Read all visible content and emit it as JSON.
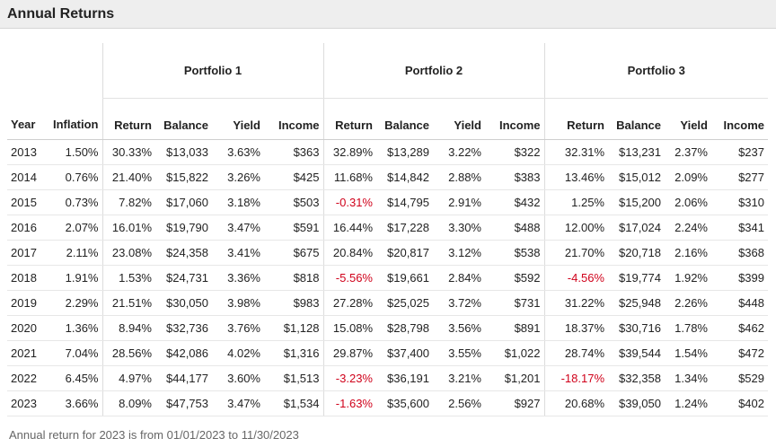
{
  "title": "Annual Returns",
  "groups": [
    "Portfolio 1",
    "Portfolio 2",
    "Portfolio 3"
  ],
  "columns": {
    "year": "Year",
    "inflation": "Inflation",
    "return": "Return",
    "balance": "Balance",
    "yield": "Yield",
    "income": "Income"
  },
  "rows": [
    {
      "year": "2013",
      "inflation": "1.50%",
      "p": [
        [
          "30.33%",
          "$13,033",
          "3.63%",
          "$363"
        ],
        [
          "32.89%",
          "$13,289",
          "3.22%",
          "$322"
        ],
        [
          "32.31%",
          "$13,231",
          "2.37%",
          "$237"
        ]
      ]
    },
    {
      "year": "2014",
      "inflation": "0.76%",
      "p": [
        [
          "21.40%",
          "$15,822",
          "3.26%",
          "$425"
        ],
        [
          "11.68%",
          "$14,842",
          "2.88%",
          "$383"
        ],
        [
          "13.46%",
          "$15,012",
          "2.09%",
          "$277"
        ]
      ]
    },
    {
      "year": "2015",
      "inflation": "0.73%",
      "p": [
        [
          "7.82%",
          "$17,060",
          "3.18%",
          "$503"
        ],
        [
          "-0.31%",
          "$14,795",
          "2.91%",
          "$432"
        ],
        [
          "1.25%",
          "$15,200",
          "2.06%",
          "$310"
        ]
      ]
    },
    {
      "year": "2016",
      "inflation": "2.07%",
      "p": [
        [
          "16.01%",
          "$19,790",
          "3.47%",
          "$591"
        ],
        [
          "16.44%",
          "$17,228",
          "3.30%",
          "$488"
        ],
        [
          "12.00%",
          "$17,024",
          "2.24%",
          "$341"
        ]
      ]
    },
    {
      "year": "2017",
      "inflation": "2.11%",
      "p": [
        [
          "23.08%",
          "$24,358",
          "3.41%",
          "$675"
        ],
        [
          "20.84%",
          "$20,817",
          "3.12%",
          "$538"
        ],
        [
          "21.70%",
          "$20,718",
          "2.16%",
          "$368"
        ]
      ]
    },
    {
      "year": "2018",
      "inflation": "1.91%",
      "p": [
        [
          "1.53%",
          "$24,731",
          "3.36%",
          "$818"
        ],
        [
          "-5.56%",
          "$19,661",
          "2.84%",
          "$592"
        ],
        [
          "-4.56%",
          "$19,774",
          "1.92%",
          "$399"
        ]
      ]
    },
    {
      "year": "2019",
      "inflation": "2.29%",
      "p": [
        [
          "21.51%",
          "$30,050",
          "3.98%",
          "$983"
        ],
        [
          "27.28%",
          "$25,025",
          "3.72%",
          "$731"
        ],
        [
          "31.22%",
          "$25,948",
          "2.26%",
          "$448"
        ]
      ]
    },
    {
      "year": "2020",
      "inflation": "1.36%",
      "p": [
        [
          "8.94%",
          "$32,736",
          "3.76%",
          "$1,128"
        ],
        [
          "15.08%",
          "$28,798",
          "3.56%",
          "$891"
        ],
        [
          "18.37%",
          "$30,716",
          "1.78%",
          "$462"
        ]
      ]
    },
    {
      "year": "2021",
      "inflation": "7.04%",
      "p": [
        [
          "28.56%",
          "$42,086",
          "4.02%",
          "$1,316"
        ],
        [
          "29.87%",
          "$37,400",
          "3.55%",
          "$1,022"
        ],
        [
          "28.74%",
          "$39,544",
          "1.54%",
          "$472"
        ]
      ]
    },
    {
      "year": "2022",
      "inflation": "6.45%",
      "p": [
        [
          "4.97%",
          "$44,177",
          "3.60%",
          "$1,513"
        ],
        [
          "-3.23%",
          "$36,191",
          "3.21%",
          "$1,201"
        ],
        [
          "-18.17%",
          "$32,358",
          "1.34%",
          "$529"
        ]
      ]
    },
    {
      "year": "2023",
      "inflation": "3.66%",
      "p": [
        [
          "8.09%",
          "$47,753",
          "3.47%",
          "$1,534"
        ],
        [
          "-1.63%",
          "$35,600",
          "2.56%",
          "$927"
        ],
        [
          "20.68%",
          "$39,050",
          "1.24%",
          "$402"
        ]
      ]
    }
  ],
  "footnote": "Annual return for 2023 is from 01/01/2023 to 11/30/2023",
  "colors": {
    "negative": "#d0021b",
    "header_bg": "#eeeeee"
  }
}
